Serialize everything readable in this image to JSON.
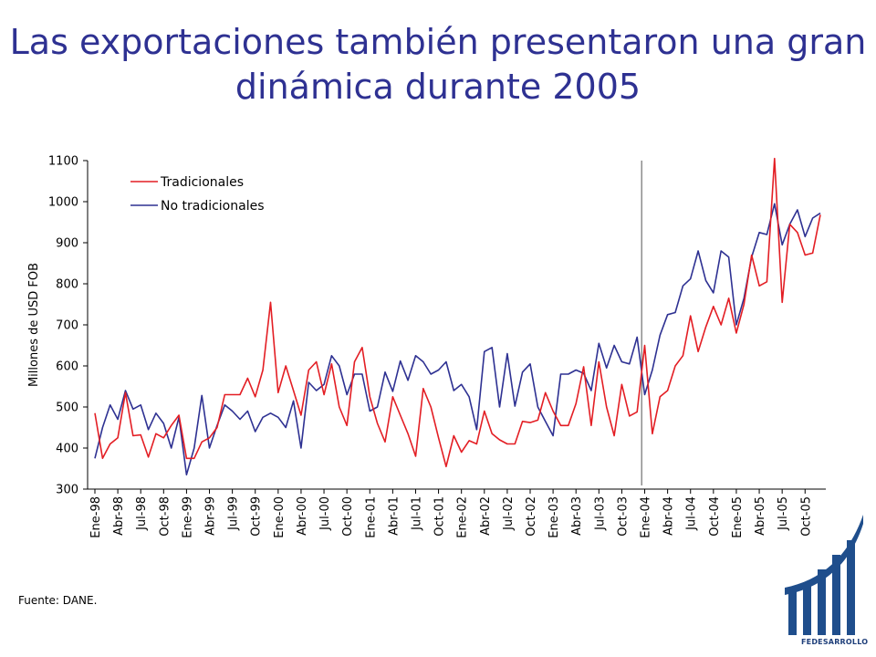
{
  "title_line1": "Las exportaciones también presentaron una gran",
  "title_line2": "dinámica durante 2005",
  "source": "Fuente: DANE.",
  "logo_text": "FEDESARROLLO",
  "colors": {
    "title": "#2e3192",
    "tradicionales": "#e31e24",
    "no_tradicionales": "#2e3192",
    "logo": "#1f4e8c"
  },
  "chart_data": {
    "type": "line",
    "ylabel": "Millones de USD FOB",
    "xlabel": "",
    "ylim": [
      300,
      1100
    ],
    "yticks": [
      300,
      400,
      500,
      600,
      700,
      800,
      900,
      1000,
      1100
    ],
    "grid": false,
    "legend": "top-left",
    "x_tick_labels": [
      "Ene-98",
      "Abr-98",
      "Jul-98",
      "Oct-98",
      "Ene-99",
      "Abr-99",
      "Jul-99",
      "Oct-99",
      "Ene-00",
      "Abr-00",
      "Jul-00",
      "Oct-00",
      "Ene-01",
      "Abr-01",
      "Jul-01",
      "Oct-01",
      "Ene-02",
      "Abr-02",
      "Jul-02",
      "Oct-02",
      "Ene-03",
      "Abr-03",
      "Jul-03",
      "Oct-03",
      "Ene-04",
      "Abr-04",
      "Jul-04",
      "Oct-04",
      "Ene-05",
      "Abr-05",
      "Jul-05",
      "Oct-05"
    ],
    "x_start": "Ene-98",
    "frequency": "monthly",
    "vertical_marker": "Dic-03",
    "series": [
      {
        "name": "Tradicionales",
        "color": "#e31e24",
        "values": [
          485,
          375,
          410,
          425,
          535,
          430,
          432,
          378,
          435,
          425,
          455,
          480,
          375,
          375,
          415,
          425,
          450,
          530,
          530,
          530,
          570,
          525,
          590,
          755,
          535,
          600,
          540,
          480,
          590,
          610,
          530,
          605,
          500,
          455,
          610,
          645,
          525,
          460,
          415,
          525,
          480,
          435,
          380,
          545,
          500,
          425,
          355,
          430,
          390,
          418,
          410,
          490,
          435,
          420,
          410,
          410,
          465,
          462,
          468,
          535,
          490,
          455,
          455,
          508,
          598,
          455,
          610,
          500,
          430,
          555,
          478,
          488,
          650,
          435,
          525,
          540,
          600,
          625,
          722,
          635,
          695,
          745,
          700,
          765,
          680,
          750,
          870,
          795,
          805,
          1105,
          755,
          945,
          925,
          870,
          875,
          968
        ]
      },
      {
        "name": "No tradicionales",
        "color": "#2e3192",
        "values": [
          375,
          450,
          505,
          470,
          540,
          495,
          505,
          445,
          485,
          460,
          400,
          475,
          335,
          400,
          528,
          400,
          455,
          505,
          490,
          470,
          490,
          440,
          475,
          485,
          475,
          450,
          515,
          400,
          560,
          540,
          555,
          625,
          600,
          530,
          580,
          580,
          490,
          500,
          585,
          538,
          612,
          565,
          625,
          610,
          580,
          590,
          610,
          540,
          555,
          525,
          445,
          635,
          645,
          500,
          630,
          502,
          585,
          605,
          500,
          465,
          430,
          580,
          580,
          590,
          582,
          540,
          655,
          595,
          650,
          610,
          605,
          670,
          530,
          590,
          675,
          725,
          730,
          795,
          812,
          880,
          808,
          778,
          880,
          865,
          700,
          765,
          865,
          925,
          920,
          995,
          895,
          945,
          980,
          915,
          960,
          972
        ]
      }
    ]
  }
}
